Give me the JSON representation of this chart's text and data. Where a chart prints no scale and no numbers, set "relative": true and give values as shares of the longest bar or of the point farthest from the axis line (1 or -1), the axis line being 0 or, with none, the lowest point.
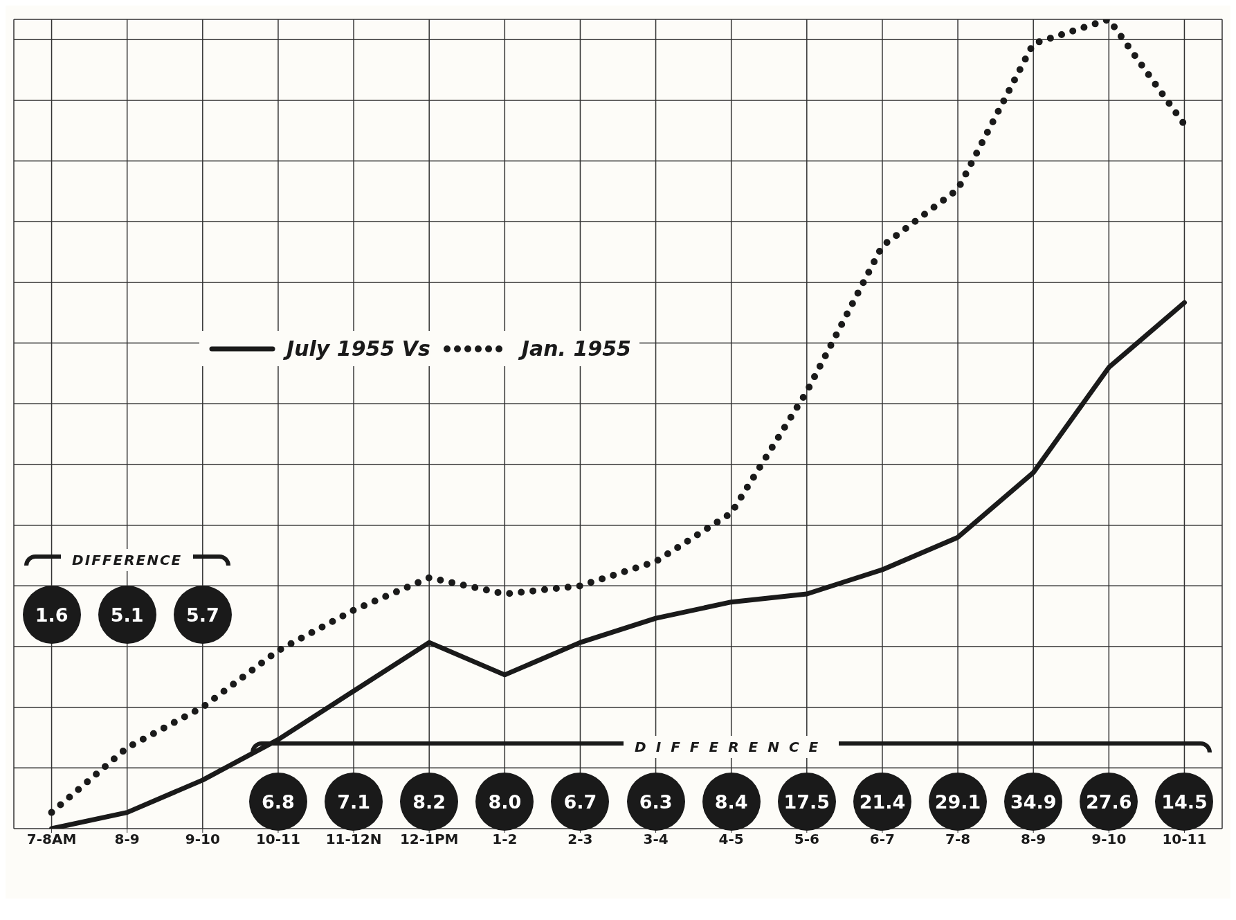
{
  "chart_data": {
    "type": "line",
    "relative": true,
    "grid": true,
    "legend": "center",
    "marker": "none",
    "categories": [
      "7-8AM",
      "8-9",
      "9-10",
      "10-11",
      "11-12N",
      "12-1PM",
      "1-2",
      "2-3",
      "3-4",
      "4-5",
      "5-6",
      "6-7",
      "7-8",
      "8-9",
      "9-10",
      "10-11"
    ],
    "series": [
      {
        "name": "July 1955 Vs",
        "color": "#1a1a1a",
        "line_style": "solid",
        "values": [
          0,
          0.02,
          0.06,
          0.11,
          0.17,
          0.23,
          0.19,
          0.23,
          0.26,
          0.28,
          0.29,
          0.32,
          0.36,
          0.44,
          0.57,
          0.65
        ]
      },
      {
        "name": "Jan. 1955",
        "color": "#1a1a1a",
        "line_style": "dotted",
        "values": [
          0.02,
          0.1,
          0.15,
          0.22,
          0.27,
          0.31,
          0.29,
          0.3,
          0.33,
          0.39,
          0.54,
          0.72,
          0.79,
          0.97,
          1,
          0.87
        ]
      }
    ],
    "annotations": [
      "DIFFERENCE",
      "1.6",
      "5.1",
      "5.7",
      "DIFFERENCE",
      "6.8",
      "7.1",
      "8.2",
      "8.0",
      "6.7",
      "6.3",
      "8.4",
      "17.5",
      "21.4",
      "29.1",
      "34.9",
      "27.6",
      "14.5"
    ]
  }
}
